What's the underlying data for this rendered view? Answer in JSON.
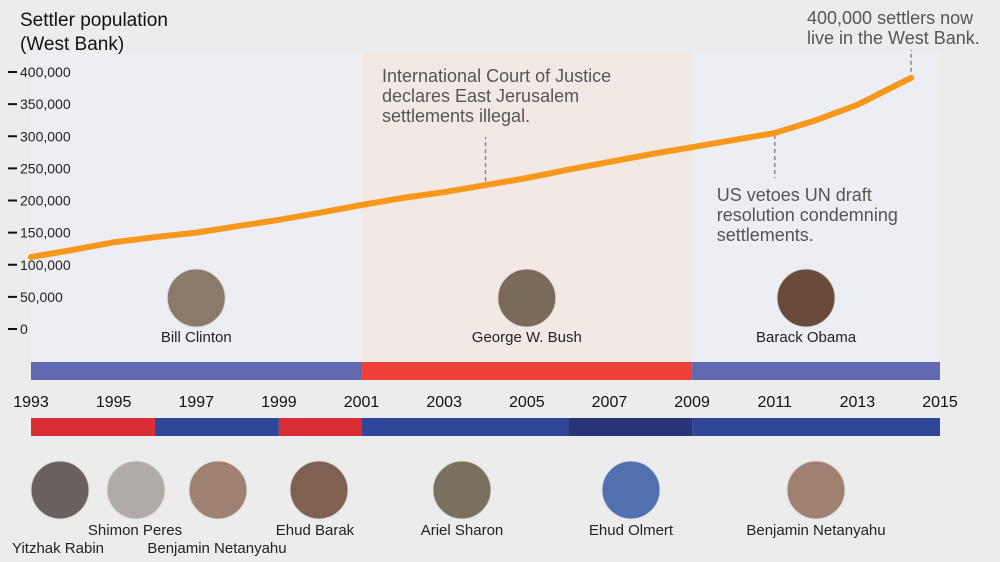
{
  "chart_data": {
    "type": "line",
    "title": "Settler population\n(West Bank)",
    "title_lines": [
      "Settler population",
      "(West Bank)"
    ],
    "ylim": [
      0,
      400000
    ],
    "yticks": [
      0,
      50000,
      100000,
      150000,
      200000,
      250000,
      300000,
      350000,
      400000
    ],
    "ytick_labels": [
      "0",
      "50,000",
      "100,000",
      "150,000",
      "200,000",
      "250,000",
      "300,000",
      "350,000",
      "400,000"
    ],
    "xlim": [
      1993,
      2015
    ],
    "xticks": [
      1993,
      1995,
      1997,
      1999,
      2001,
      2003,
      2005,
      2007,
      2009,
      2011,
      2013,
      2015
    ],
    "xtick_labels": [
      "1993",
      "1995",
      "1997",
      "1999",
      "2001",
      "2003",
      "2005",
      "2007",
      "2009",
      "2011",
      "2013",
      "2015"
    ],
    "line_color": "#f7981d",
    "series": [
      {
        "x": [
          1993,
          1994,
          1995,
          1996,
          1997,
          1998,
          1999,
          2000,
          2001,
          2002,
          2003,
          2004,
          2005,
          2006,
          2007,
          2008,
          2009,
          2010,
          2011,
          2012,
          2013,
          2014.3
        ],
        "values": [
          112000,
          123000,
          135000,
          143000,
          150000,
          160000,
          170000,
          181000,
          193000,
          204000,
          213000,
          224000,
          235000,
          248000,
          260000,
          272000,
          283000,
          294000,
          305000,
          325000,
          349000,
          391000
        ]
      }
    ],
    "annotations": [
      {
        "x": 2004,
        "y": 224000,
        "lines": [
          "International Court of Justice",
          "declares East Jerusalem",
          "settlements illegal."
        ],
        "position": "above"
      },
      {
        "x": 2011,
        "y": 305000,
        "lines": [
          "US vetoes UN draft",
          "resolution condemning",
          "settlements."
        ],
        "position": "below"
      },
      {
        "x": 2014.3,
        "y": 391000,
        "lines": [
          "400,000 settlers now",
          "live in the West Bank."
        ],
        "position": "above"
      }
    ],
    "us_presidents": [
      {
        "name": "Bill Clinton",
        "start": 1993,
        "end": 2001,
        "party_color": "#6068b0",
        "shade": "#eceef6",
        "portrait": "#8a7a6a"
      },
      {
        "name": "George W. Bush",
        "start": 2001,
        "end": 2009,
        "party_color": "#f0403a",
        "shade": "#f5e9e3",
        "portrait": "#7a6a5a"
      },
      {
        "name": "Barack Obama",
        "start": 2009,
        "end": 2015,
        "party_color": "#6068b0",
        "shade": "#eceef6",
        "portrait": "#6a4a3a"
      }
    ],
    "israeli_pms": [
      {
        "name": "Yitzhak Rabin",
        "start": 1993,
        "end": 1996,
        "color": "#d92e35",
        "portrait": "#6a6060"
      },
      {
        "name": "Shimon Peres",
        "start": 1996,
        "end": 1996,
        "color": "#d92e35",
        "portrait": "#b0aaa8"
      },
      {
        "name": "Benjamin Netanyahu",
        "start": 1996,
        "end": 1999,
        "color": "#2f469a",
        "portrait": "#a08070"
      },
      {
        "name": "Ehud Barak",
        "start": 1999,
        "end": 2001,
        "color": "#d92e35",
        "portrait": "#806050"
      },
      {
        "name": "Ariel Sharon",
        "start": 2001,
        "end": 2006,
        "color": "#2f469a",
        "portrait": "#7a7060"
      },
      {
        "name": "Ehud Olmert",
        "start": 2006,
        "end": 2009,
        "color": "#283478",
        "portrait": "#5070b0"
      },
      {
        "name": "Benjamin Netanyahu",
        "start": 2009,
        "end": 2015,
        "color": "#2f469a",
        "portrait": "#a08070"
      }
    ]
  }
}
